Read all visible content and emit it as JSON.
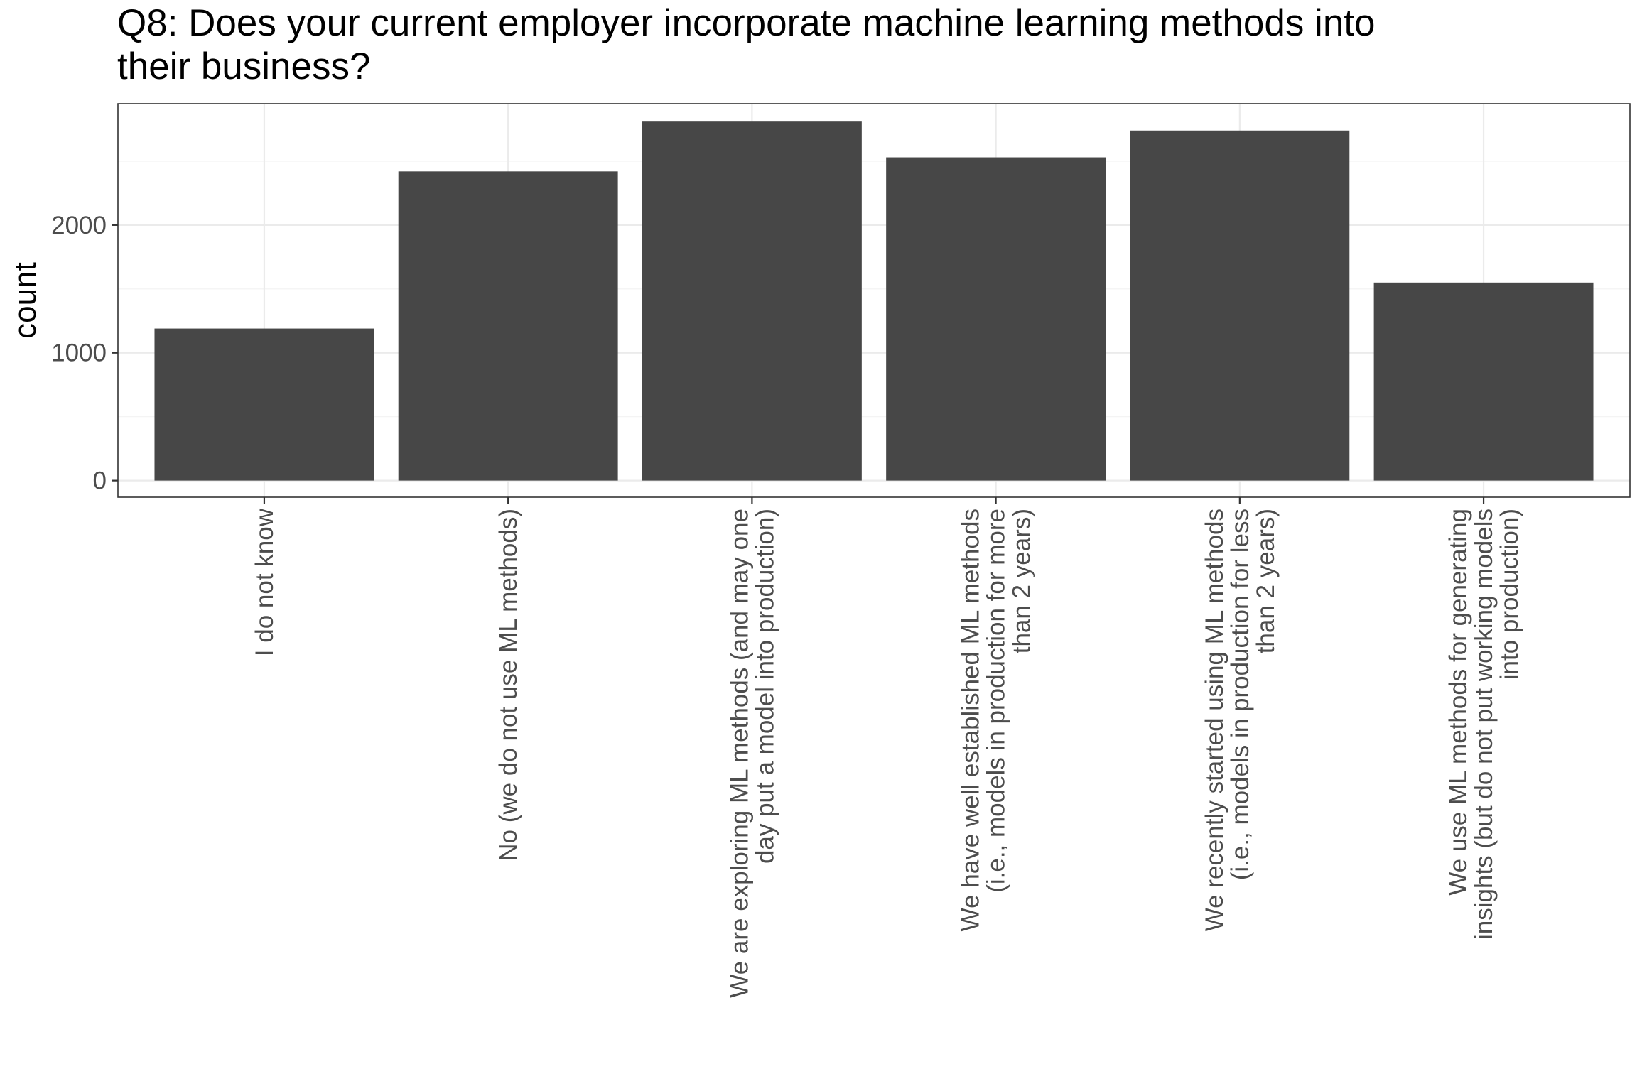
{
  "chart_data": {
    "type": "bar",
    "title": "Q8: Does your current employer incorporate machine learning methods into\ntheir business?",
    "xlabel": "",
    "ylabel": "count",
    "categories": [
      [
        "I do not know"
      ],
      [
        "No (we do not use ML methods)"
      ],
      [
        "We are exploring ML methods (and may one",
        "day put a model into production)"
      ],
      [
        "We have well established ML methods",
        "(i.e., models in production for more",
        "than 2 years)"
      ],
      [
        "We recently started using ML methods",
        "(i.e., models in production for less",
        "than 2 years)"
      ],
      [
        "We use ML methods for generating",
        "insights (but do not put working models",
        "into production)"
      ]
    ],
    "values": [
      1190,
      2420,
      2810,
      2530,
      2740,
      1550
    ],
    "yticks": [
      0,
      1000,
      2000
    ],
    "ylim": [
      -130,
      2950
    ],
    "grid": true,
    "bar_color": "#474747"
  }
}
